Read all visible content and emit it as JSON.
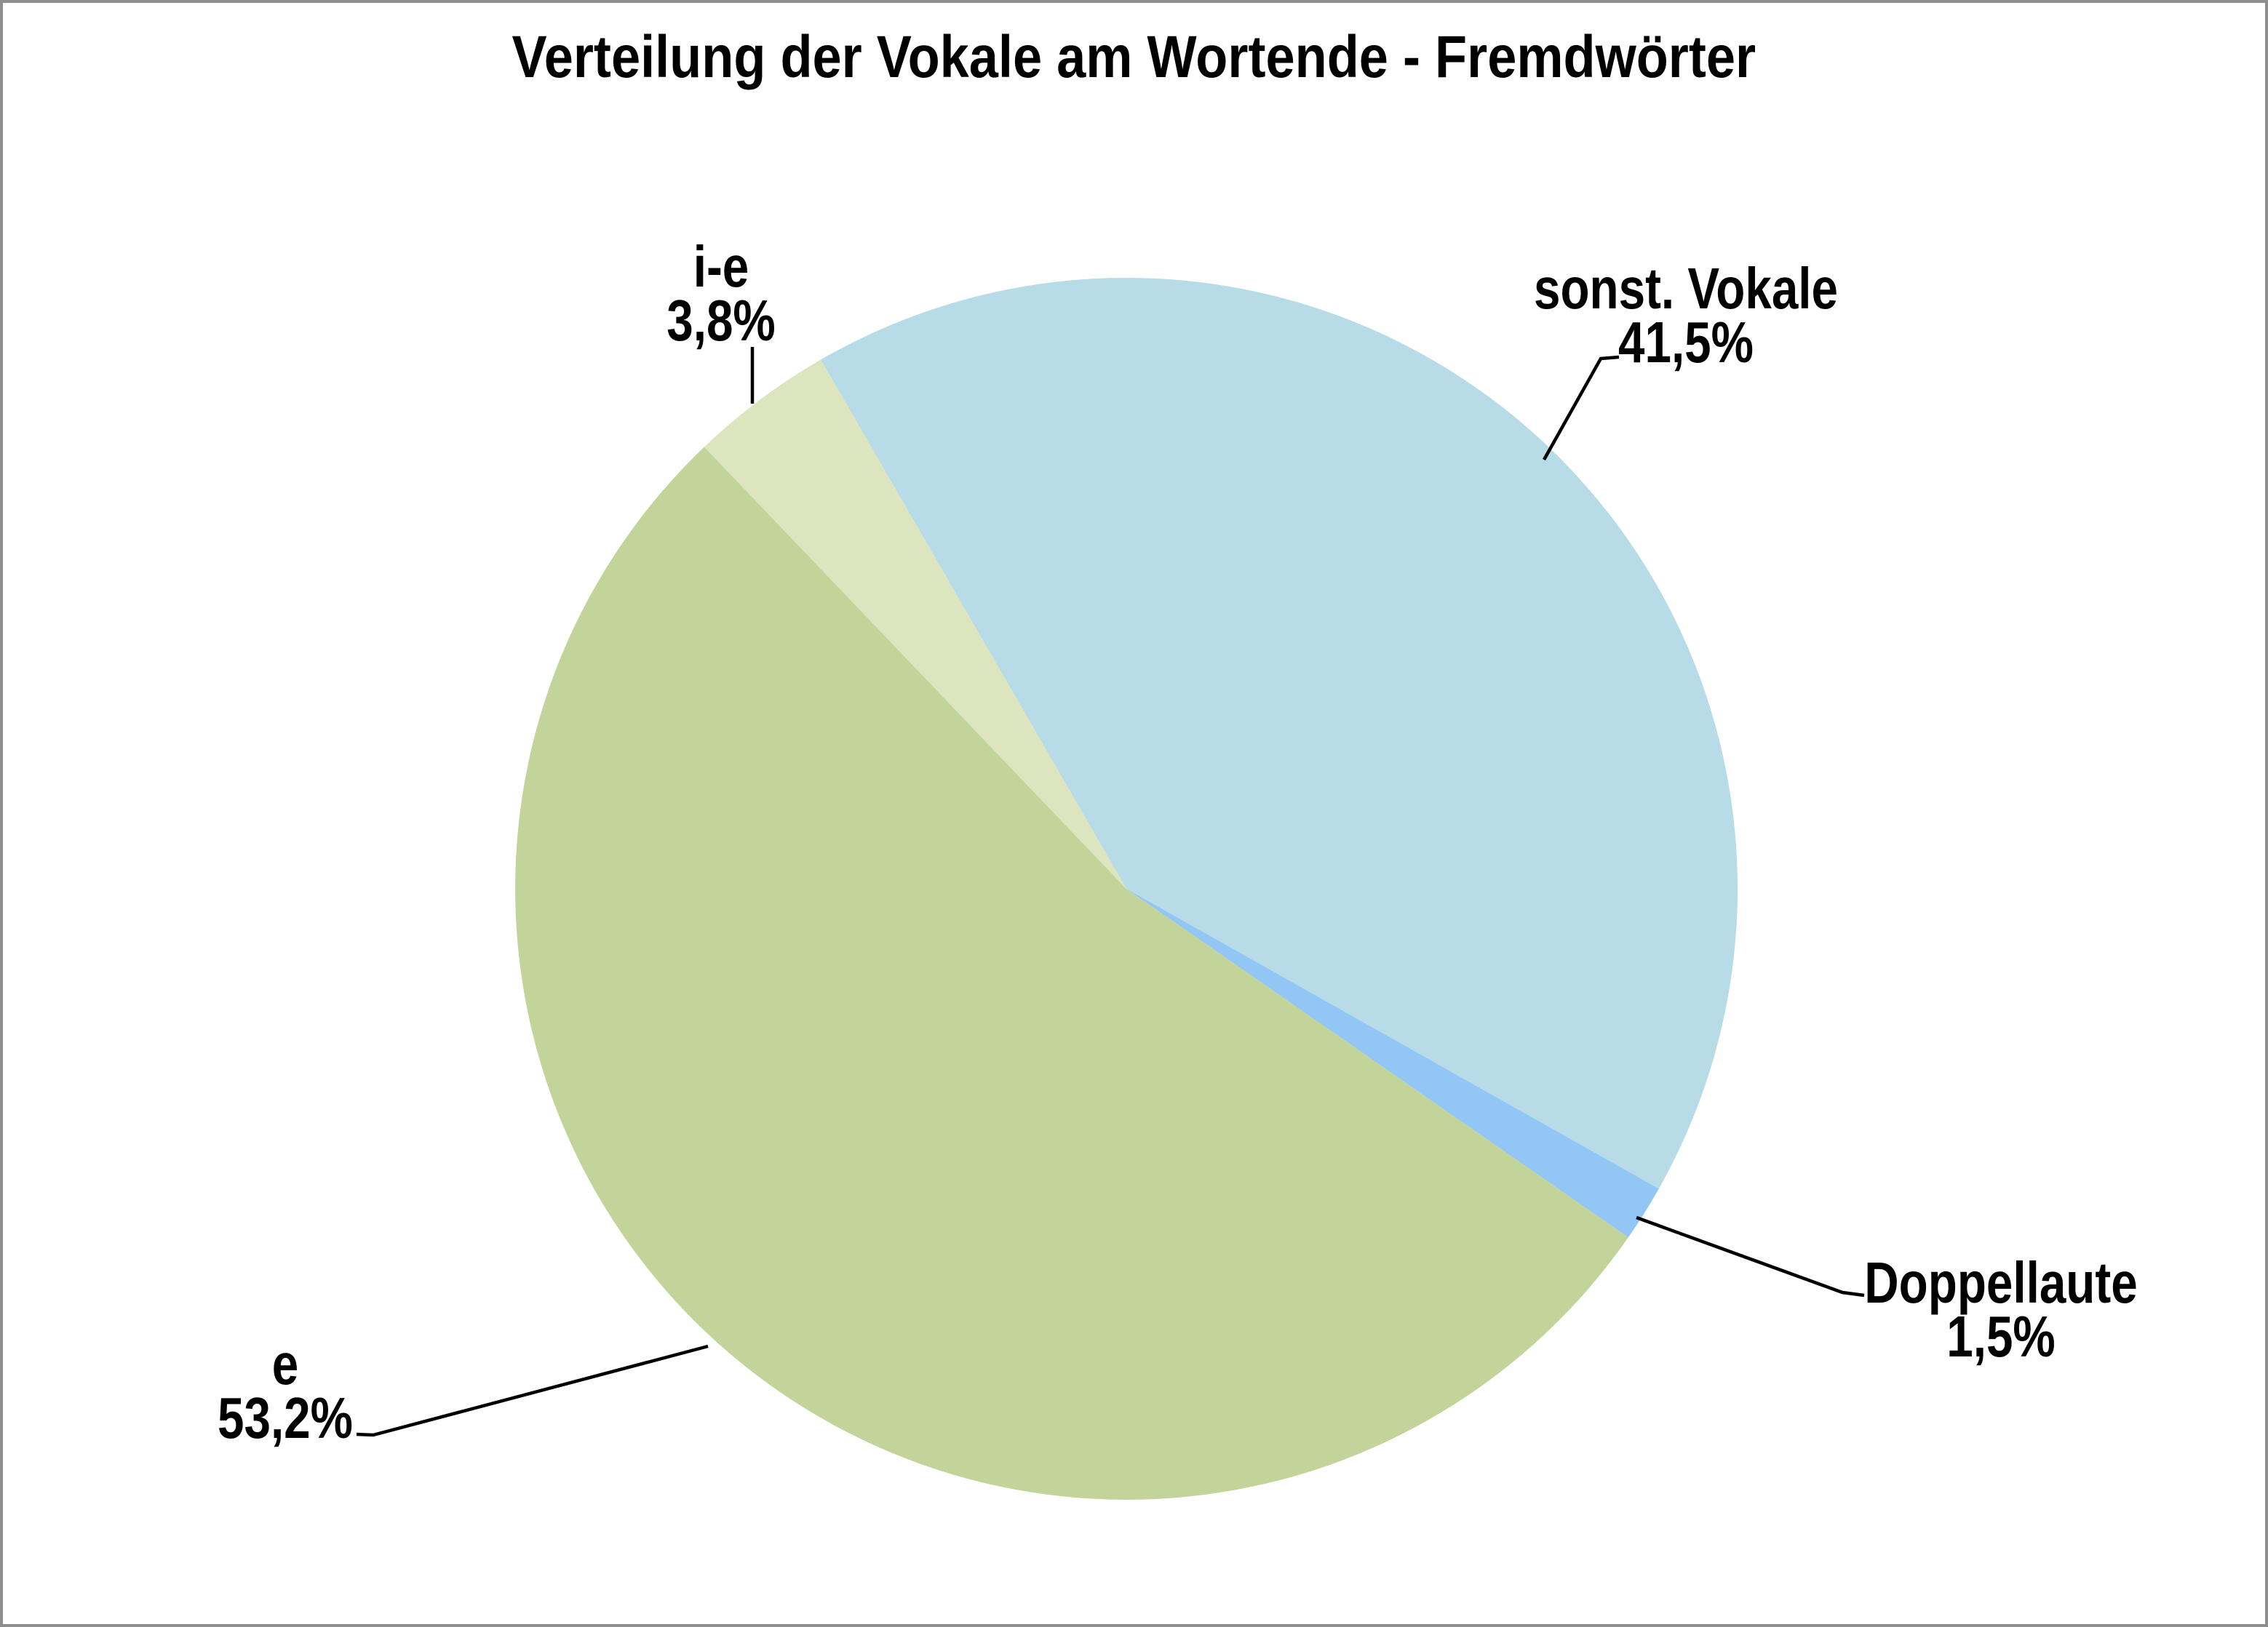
{
  "chart_data": {
    "type": "pie",
    "title": "Verteilung der Vokale am Wortende - Fremdwörter",
    "start_angle_deg": 330,
    "direction": "clockwise",
    "legend": "none",
    "background_color": "#FFFFFF",
    "frame_border_color": "#8E8E8E",
    "leader_line_color": "#000000",
    "slices": [
      {
        "label": "sonst. Vokale",
        "pct_label": "41,5%",
        "value": 41.5,
        "color": "#B7DBE7"
      },
      {
        "label": "Doppellaute",
        "pct_label": "1,5%",
        "value": 1.5,
        "color": "#92C6F4"
      },
      {
        "label": "e",
        "pct_label": "53,2%",
        "value": 53.2,
        "color": "#C3D49A"
      },
      {
        "label": "i-e",
        "pct_label": "3,8%",
        "value": 3.8,
        "color": "#DCE5BD"
      }
    ]
  }
}
